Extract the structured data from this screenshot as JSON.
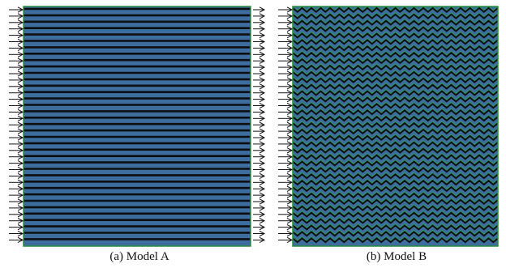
{
  "panels": [
    {
      "caption": "(a) Model A",
      "pattern": "straight-channels"
    },
    {
      "caption": "(b) Model B",
      "pattern": "zigzag-channels"
    }
  ],
  "colors": {
    "channel_fill": "#3d6d9c",
    "channel_wall": "#0c0f12",
    "zigzag_wall": "#2f9e5e",
    "frame": "#2b8a3e",
    "arrow": "#111111",
    "background": "#ffffff"
  }
}
